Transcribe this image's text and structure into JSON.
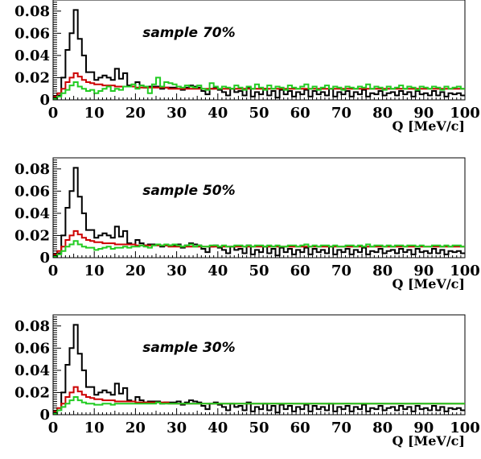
{
  "chart_data": [
    {
      "type": "histogram",
      "title": "sample 70%",
      "xlabel": "Q [MeV/c]",
      "ylabel": "",
      "xlim": [
        0,
        100
      ],
      "ylim": [
        0,
        0.09
      ],
      "xticks": [
        "0",
        "10",
        "20",
        "30",
        "40",
        "50",
        "60",
        "70",
        "80",
        "90",
        "100"
      ],
      "yticks": [
        "0",
        "0.02",
        "0.04",
        "0.06",
        "0.08"
      ],
      "bin_width": 1,
      "series": [
        {
          "color": "#000000",
          "values": [
            0.002,
            0.004,
            0.02,
            0.045,
            0.06,
            0.081,
            0.055,
            0.04,
            0.025,
            0.025,
            0.018,
            0.02,
            0.022,
            0.02,
            0.018,
            0.028,
            0.019,
            0.024,
            0.013,
            0.012,
            0.016,
            0.013,
            0.011,
            0.012,
            0.012,
            0.012,
            0.01,
            0.011,
            0.011,
            0.011,
            0.012,
            0.009,
            0.011,
            0.013,
            0.012,
            0.011,
            0.008,
            0.005,
            0.01,
            0.011,
            0.009,
            0.007,
            0.004,
            0.01,
            0.007,
            0.008,
            0.004,
            0.011,
            0.003,
            0.007,
            0.005,
            0.01,
            0.004,
            0.008,
            0.002,
            0.009,
            0.005,
            0.008,
            0.003,
            0.007,
            0.005,
            0.009,
            0.003,
            0.008,
            0.005,
            0.007,
            0.004,
            0.01,
            0.003,
            0.007,
            0.005,
            0.008,
            0.003,
            0.007,
            0.005,
            0.009,
            0.003,
            0.006,
            0.005,
            0.008,
            0.004,
            0.006,
            0.007,
            0.004,
            0.008,
            0.005,
            0.007,
            0.003,
            0.008,
            0.005,
            0.006,
            0.004,
            0.008,
            0.004,
            0.007,
            0.003,
            0.006,
            0.005,
            0.006,
            0.004
          ]
        },
        {
          "color": "#cc0000",
          "values": [
            0.003,
            0.006,
            0.01,
            0.016,
            0.02,
            0.024,
            0.021,
            0.018,
            0.016,
            0.015,
            0.014,
            0.014,
            0.013,
            0.013,
            0.013,
            0.012,
            0.012,
            0.012,
            0.012,
            0.012,
            0.011,
            0.011,
            0.011,
            0.011,
            0.011,
            0.011,
            0.011,
            0.011,
            0.01,
            0.01,
            0.01,
            0.01,
            0.01,
            0.01,
            0.01,
            0.01,
            0.01,
            0.01,
            0.01,
            0.01,
            0.01,
            0.01,
            0.01,
            0.01,
            0.01,
            0.01,
            0.01,
            0.01,
            0.01,
            0.01,
            0.01,
            0.01,
            0.01,
            0.01,
            0.01,
            0.01,
            0.01,
            0.01,
            0.01,
            0.01,
            0.01,
            0.01,
            0.01,
            0.01,
            0.01,
            0.01,
            0.01,
            0.01,
            0.01,
            0.01,
            0.01,
            0.01,
            0.01,
            0.01,
            0.01,
            0.01,
            0.01,
            0.01,
            0.01,
            0.01,
            0.01,
            0.01,
            0.01,
            0.01,
            0.01,
            0.01,
            0.01,
            0.01,
            0.01,
            0.01,
            0.01,
            0.01,
            0.01,
            0.01,
            0.01,
            0.01,
            0.01,
            0.01,
            0.01,
            0.01
          ]
        },
        {
          "color": "#22cc22",
          "values": [
            0.001,
            0.003,
            0.006,
            0.009,
            0.013,
            0.016,
            0.012,
            0.01,
            0.008,
            0.009,
            0.006,
            0.008,
            0.01,
            0.012,
            0.008,
            0.01,
            0.009,
            0.012,
            0.012,
            0.014,
            0.01,
            0.013,
            0.012,
            0.006,
            0.014,
            0.02,
            0.012,
            0.016,
            0.015,
            0.014,
            0.012,
            0.011,
            0.013,
            0.012,
            0.011,
            0.013,
            0.01,
            0.009,
            0.015,
            0.012,
            0.01,
            0.012,
            0.011,
            0.01,
            0.013,
            0.011,
            0.009,
            0.012,
            0.01,
            0.014,
            0.011,
            0.009,
            0.013,
            0.01,
            0.012,
            0.011,
            0.009,
            0.013,
            0.011,
            0.01,
            0.012,
            0.014,
            0.01,
            0.012,
            0.009,
            0.011,
            0.013,
            0.01,
            0.012,
            0.011,
            0.009,
            0.012,
            0.011,
            0.01,
            0.012,
            0.011,
            0.014,
            0.01,
            0.012,
            0.011,
            0.009,
            0.012,
            0.01,
            0.011,
            0.013,
            0.01,
            0.012,
            0.011,
            0.009,
            0.012,
            0.011,
            0.01,
            0.012,
            0.011,
            0.009,
            0.012,
            0.01,
            0.011,
            0.012,
            0.01
          ]
        }
      ]
    },
    {
      "type": "histogram",
      "title": "sample 50%",
      "xlabel": "Q [MeV/c]",
      "ylabel": "",
      "xlim": [
        0,
        100
      ],
      "ylim": [
        0,
        0.09
      ],
      "xticks": [
        "0",
        "10",
        "20",
        "30",
        "40",
        "50",
        "60",
        "70",
        "80",
        "90",
        "100"
      ],
      "yticks": [
        "0",
        "0.02",
        "0.04",
        "0.06",
        "0.08"
      ],
      "bin_width": 1,
      "series": [
        {
          "color": "#000000",
          "values": [
            0.002,
            0.004,
            0.02,
            0.045,
            0.06,
            0.081,
            0.055,
            0.04,
            0.025,
            0.025,
            0.018,
            0.02,
            0.022,
            0.02,
            0.018,
            0.028,
            0.019,
            0.024,
            0.013,
            0.012,
            0.016,
            0.013,
            0.011,
            0.012,
            0.012,
            0.012,
            0.01,
            0.011,
            0.011,
            0.011,
            0.012,
            0.009,
            0.011,
            0.013,
            0.012,
            0.011,
            0.008,
            0.005,
            0.01,
            0.011,
            0.009,
            0.007,
            0.004,
            0.01,
            0.007,
            0.008,
            0.004,
            0.011,
            0.003,
            0.007,
            0.005,
            0.01,
            0.004,
            0.008,
            0.002,
            0.009,
            0.005,
            0.008,
            0.003,
            0.007,
            0.005,
            0.009,
            0.003,
            0.008,
            0.005,
            0.007,
            0.004,
            0.01,
            0.003,
            0.007,
            0.005,
            0.008,
            0.003,
            0.007,
            0.005,
            0.009,
            0.003,
            0.006,
            0.005,
            0.008,
            0.004,
            0.006,
            0.007,
            0.004,
            0.008,
            0.005,
            0.007,
            0.003,
            0.008,
            0.005,
            0.006,
            0.004,
            0.008,
            0.004,
            0.007,
            0.003,
            0.006,
            0.005,
            0.006,
            0.004
          ]
        },
        {
          "color": "#cc0000",
          "values": [
            0.003,
            0.006,
            0.01,
            0.016,
            0.02,
            0.024,
            0.021,
            0.018,
            0.016,
            0.015,
            0.014,
            0.014,
            0.013,
            0.013,
            0.013,
            0.012,
            0.012,
            0.012,
            0.012,
            0.012,
            0.011,
            0.011,
            0.011,
            0.011,
            0.011,
            0.011,
            0.011,
            0.011,
            0.01,
            0.01,
            0.01,
            0.01,
            0.01,
            0.01,
            0.01,
            0.01,
            0.01,
            0.01,
            0.01,
            0.01,
            0.01,
            0.01,
            0.01,
            0.01,
            0.01,
            0.01,
            0.01,
            0.01,
            0.01,
            0.01,
            0.01,
            0.01,
            0.01,
            0.01,
            0.01,
            0.01,
            0.01,
            0.01,
            0.01,
            0.01,
            0.01,
            0.01,
            0.01,
            0.01,
            0.01,
            0.01,
            0.01,
            0.01,
            0.01,
            0.01,
            0.01,
            0.01,
            0.01,
            0.01,
            0.01,
            0.01,
            0.01,
            0.01,
            0.01,
            0.01,
            0.01,
            0.01,
            0.01,
            0.01,
            0.01,
            0.01,
            0.01,
            0.01,
            0.01,
            0.01,
            0.01,
            0.01,
            0.01,
            0.01,
            0.01,
            0.01,
            0.01,
            0.01,
            0.01,
            0.01
          ]
        },
        {
          "color": "#22cc22",
          "values": [
            0.001,
            0.003,
            0.006,
            0.01,
            0.012,
            0.015,
            0.012,
            0.01,
            0.009,
            0.009,
            0.007,
            0.008,
            0.009,
            0.01,
            0.008,
            0.009,
            0.009,
            0.01,
            0.009,
            0.01,
            0.01,
            0.011,
            0.01,
            0.009,
            0.011,
            0.012,
            0.011,
            0.012,
            0.011,
            0.012,
            0.011,
            0.01,
            0.011,
            0.012,
            0.01,
            0.011,
            0.01,
            0.01,
            0.011,
            0.011,
            0.01,
            0.011,
            0.01,
            0.01,
            0.011,
            0.011,
            0.01,
            0.011,
            0.01,
            0.011,
            0.011,
            0.01,
            0.011,
            0.01,
            0.011,
            0.01,
            0.01,
            0.011,
            0.011,
            0.01,
            0.011,
            0.012,
            0.01,
            0.011,
            0.01,
            0.011,
            0.011,
            0.01,
            0.011,
            0.01,
            0.01,
            0.011,
            0.011,
            0.01,
            0.011,
            0.01,
            0.012,
            0.01,
            0.011,
            0.011,
            0.01,
            0.011,
            0.01,
            0.011,
            0.011,
            0.01,
            0.011,
            0.011,
            0.01,
            0.011,
            0.01,
            0.01,
            0.011,
            0.011,
            0.01,
            0.011,
            0.01,
            0.011,
            0.011,
            0.01
          ]
        }
      ]
    },
    {
      "type": "histogram",
      "title": "sample 30%",
      "xlabel": "Q [MeV/c]",
      "ylabel": "",
      "xlim": [
        0,
        100
      ],
      "ylim": [
        0,
        0.09
      ],
      "xticks": [
        "0",
        "10",
        "20",
        "30",
        "40",
        "50",
        "60",
        "70",
        "80",
        "90",
        "100"
      ],
      "yticks": [
        "0",
        "0.02",
        "0.04",
        "0.06",
        "0.08"
      ],
      "bin_width": 1,
      "series": [
        {
          "color": "#000000",
          "values": [
            0.002,
            0.004,
            0.02,
            0.045,
            0.06,
            0.081,
            0.055,
            0.04,
            0.025,
            0.025,
            0.018,
            0.02,
            0.022,
            0.02,
            0.018,
            0.028,
            0.019,
            0.024,
            0.013,
            0.012,
            0.016,
            0.013,
            0.011,
            0.012,
            0.012,
            0.012,
            0.01,
            0.011,
            0.011,
            0.011,
            0.012,
            0.009,
            0.011,
            0.013,
            0.012,
            0.011,
            0.008,
            0.005,
            0.01,
            0.011,
            0.009,
            0.007,
            0.004,
            0.01,
            0.007,
            0.008,
            0.004,
            0.011,
            0.003,
            0.007,
            0.005,
            0.01,
            0.004,
            0.008,
            0.002,
            0.009,
            0.005,
            0.008,
            0.003,
            0.007,
            0.005,
            0.009,
            0.003,
            0.008,
            0.005,
            0.007,
            0.004,
            0.01,
            0.003,
            0.007,
            0.005,
            0.008,
            0.003,
            0.007,
            0.005,
            0.009,
            0.003,
            0.006,
            0.005,
            0.008,
            0.004,
            0.006,
            0.007,
            0.004,
            0.008,
            0.005,
            0.007,
            0.003,
            0.008,
            0.005,
            0.006,
            0.004,
            0.008,
            0.004,
            0.007,
            0.003,
            0.006,
            0.005,
            0.006,
            0.004
          ]
        },
        {
          "color": "#cc0000",
          "values": [
            0.003,
            0.006,
            0.01,
            0.016,
            0.02,
            0.025,
            0.021,
            0.018,
            0.016,
            0.015,
            0.014,
            0.014,
            0.013,
            0.013,
            0.013,
            0.012,
            0.012,
            0.012,
            0.012,
            0.012,
            0.011,
            0.011,
            0.011,
            0.011,
            0.011,
            0.011,
            0.011,
            0.011,
            0.01,
            0.01,
            0.01,
            0.01,
            0.01,
            0.01,
            0.01,
            0.01,
            0.01,
            0.01,
            0.01,
            0.01,
            0.01,
            0.01,
            0.01,
            0.01,
            0.01,
            0.01,
            0.01,
            0.01,
            0.01,
            0.01,
            0.01,
            0.01,
            0.01,
            0.01,
            0.01,
            0.01,
            0.01,
            0.01,
            0.01,
            0.01,
            0.01,
            0.01,
            0.01,
            0.01,
            0.01,
            0.01,
            0.01,
            0.01,
            0.01,
            0.01,
            0.01,
            0.01,
            0.01,
            0.01,
            0.01,
            0.01,
            0.01,
            0.01,
            0.01,
            0.01,
            0.01,
            0.01,
            0.01,
            0.01,
            0.01,
            0.01,
            0.01,
            0.01,
            0.01,
            0.01,
            0.01,
            0.01,
            0.01,
            0.01,
            0.01,
            0.01,
            0.01,
            0.01,
            0.01,
            0.01
          ]
        },
        {
          "color": "#22cc22",
          "values": [
            0.001,
            0.004,
            0.007,
            0.01,
            0.013,
            0.016,
            0.013,
            0.011,
            0.01,
            0.01,
            0.009,
            0.009,
            0.01,
            0.01,
            0.009,
            0.01,
            0.01,
            0.01,
            0.01,
            0.01,
            0.01,
            0.01,
            0.01,
            0.01,
            0.01,
            0.011,
            0.01,
            0.01,
            0.01,
            0.01,
            0.01,
            0.01,
            0.01,
            0.01,
            0.01,
            0.01,
            0.01,
            0.01,
            0.01,
            0.01,
            0.01,
            0.01,
            0.01,
            0.01,
            0.01,
            0.01,
            0.01,
            0.01,
            0.01,
            0.01,
            0.01,
            0.01,
            0.01,
            0.01,
            0.01,
            0.01,
            0.01,
            0.01,
            0.01,
            0.01,
            0.01,
            0.01,
            0.01,
            0.01,
            0.01,
            0.01,
            0.01,
            0.01,
            0.01,
            0.01,
            0.01,
            0.01,
            0.01,
            0.01,
            0.01,
            0.01,
            0.01,
            0.01,
            0.01,
            0.01,
            0.01,
            0.01,
            0.01,
            0.01,
            0.01,
            0.01,
            0.01,
            0.01,
            0.01,
            0.01,
            0.01,
            0.01,
            0.01,
            0.01,
            0.01,
            0.01,
            0.01,
            0.01,
            0.01,
            0.01
          ]
        }
      ]
    }
  ]
}
